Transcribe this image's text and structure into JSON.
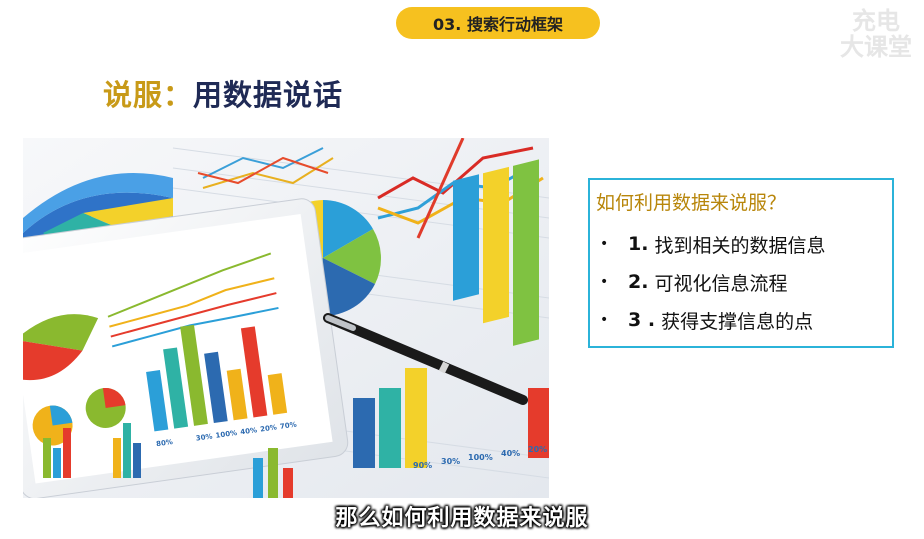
{
  "header": {
    "section_label": "03. 搜索行动框架"
  },
  "watermark": {
    "line1": "充电",
    "line2": "大课堂"
  },
  "slide": {
    "title_part1": "说服：",
    "title_part2": "用数据说话"
  },
  "image": {
    "icon": "chart-collage-image",
    "label_a": "80%",
    "label_b": "30%",
    "label_c": "100%",
    "label_d": "40%",
    "label_e": "20%",
    "label_f": "70%",
    "label_g": "90%",
    "label_h": "30%",
    "label_i": "100%",
    "label_j": "40%",
    "label_k": "20%"
  },
  "info_box": {
    "question": "如何利用数据来说服？",
    "items": [
      {
        "bullet": "•",
        "num": "1.",
        "text": "找到相关的数据信息"
      },
      {
        "bullet": "•",
        "num": "2.",
        "text": "可视化信息流程"
      },
      {
        "bullet": "•",
        "num": "3 .",
        "text": "获得支撑信息的点"
      }
    ]
  },
  "caption": {
    "text": "那么如何利用数据来说服"
  },
  "colors": {
    "pill": "#f6c11f",
    "title_gold": "#c89a18",
    "title_navy": "#1f2a55",
    "box_border": "#2bb3d9",
    "question": "#b8860b"
  }
}
